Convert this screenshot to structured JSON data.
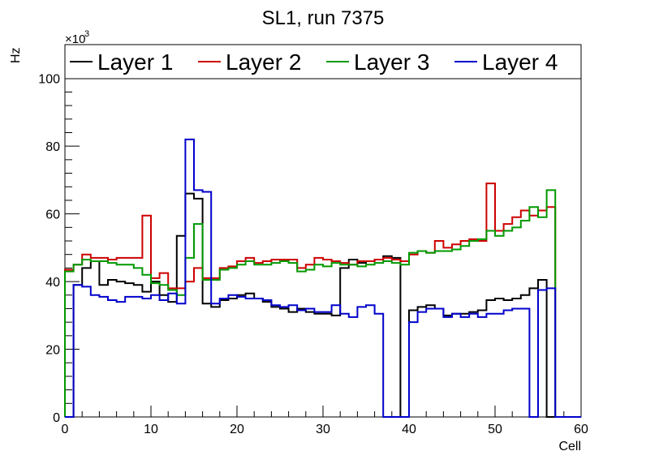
{
  "chart_data": {
    "type": "line",
    "style": "step-histogram",
    "title": "SL1, run 7375",
    "xlabel": "Cell",
    "ylabel": "Hz",
    "y_multiplier_label": "×10",
    "y_multiplier_exponent": "3",
    "xlim": [
      0,
      60
    ],
    "ylim": [
      0,
      110
    ],
    "x_ticks": [
      0,
      10,
      20,
      30,
      40,
      50,
      60
    ],
    "y_ticks": [
      0,
      20,
      40,
      60,
      80,
      100
    ],
    "legend_position": "top",
    "bin_edges_start": 0,
    "bin_width": 1,
    "series": [
      {
        "name": "Layer 1",
        "color": "#000000",
        "values": [
          0,
          39,
          44,
          46,
          39,
          40.5,
          40,
          39.5,
          39,
          37,
          40,
          36,
          34,
          53.5,
          66,
          64.5,
          33.5,
          32.5,
          34.5,
          35,
          36,
          36.5,
          35,
          34,
          32.5,
          32,
          31,
          32,
          31,
          30.5,
          30.5,
          30,
          44,
          46.5,
          45.5,
          46,
          46.5,
          47.5,
          47,
          0,
          31.5,
          32.5,
          33,
          32,
          30,
          30.5,
          30.5,
          31,
          31.5,
          34.5,
          35,
          34.5,
          35,
          36,
          38,
          40.5,
          0,
          0,
          0,
          0
        ]
      },
      {
        "name": "Layer 2",
        "color": "#cc0000",
        "values": [
          43.5,
          45,
          48,
          47,
          47,
          46.5,
          47,
          47,
          47,
          59.5,
          41,
          42.5,
          38,
          38,
          40,
          44,
          41,
          41,
          44,
          44.5,
          46,
          47,
          45.5,
          46,
          46.5,
          46.5,
          46.5,
          44,
          45,
          47,
          46.5,
          46,
          45.5,
          45,
          46,
          46,
          46.5,
          47,
          46.5,
          46,
          48,
          49,
          48.5,
          52,
          50,
          51,
          52,
          52.5,
          52,
          69,
          55,
          57,
          59,
          61,
          59.5,
          61,
          62,
          0,
          0,
          0
        ]
      },
      {
        "name": "Layer 3",
        "color": "#009900",
        "values": [
          43,
          45,
          46.5,
          46,
          46,
          45.5,
          45,
          45,
          44,
          42,
          39.5,
          39,
          37.5,
          36,
          47,
          57,
          40.5,
          40.5,
          43.5,
          44,
          45,
          46,
          45,
          45,
          45.5,
          46,
          45.5,
          43,
          43.5,
          45,
          44.5,
          45.5,
          45,
          45,
          44.5,
          45,
          45.5,
          46,
          45.5,
          45,
          48.5,
          49,
          48.5,
          49,
          49,
          49.5,
          50.5,
          52,
          52.5,
          55,
          53.5,
          55,
          56,
          58,
          62,
          59,
          67,
          0,
          0,
          0
        ]
      },
      {
        "name": "Layer 4",
        "color": "#0000cc",
        "values": [
          0,
          39,
          38.5,
          36,
          35.5,
          34.5,
          34,
          35.5,
          35.5,
          35,
          36,
          34.5,
          36.5,
          33.5,
          82,
          67,
          66.5,
          33.5,
          35,
          36,
          35.5,
          35,
          35,
          34.5,
          33,
          32.5,
          33,
          31.5,
          32,
          31,
          31,
          33,
          30.5,
          29.5,
          32.5,
          33,
          30.5,
          0,
          0,
          0,
          28,
          31,
          32,
          32,
          29.5,
          30.5,
          29.5,
          30.5,
          29.5,
          30.5,
          30.5,
          31.5,
          32,
          32,
          0,
          37.5,
          38,
          0,
          0,
          0
        ]
      }
    ]
  }
}
